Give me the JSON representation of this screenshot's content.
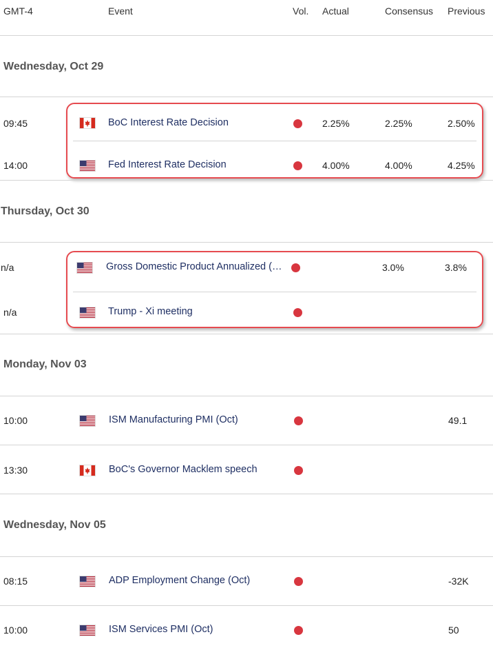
{
  "header": {
    "timezone": "GMT-4",
    "event": "Event",
    "vol": "Vol.",
    "actual": "Actual",
    "consensus": "Consensus",
    "previous": "Previous"
  },
  "colors": {
    "accent": "#e64a4f",
    "volume_dot": "#d8363f",
    "event_text": "#1f2f63"
  },
  "days": [
    {
      "label": "Wednesday, Oct 29",
      "events": [
        {
          "time": "09:45",
          "flag": "canada-flag-icon",
          "name": "BoC Interest Rate Decision",
          "volume": "high",
          "actual": "2.25%",
          "consensus": "2.25%",
          "previous": "2.50%"
        },
        {
          "time": "14:00",
          "flag": "usa-flag-icon",
          "name": "Fed Interest Rate Decision",
          "volume": "high",
          "actual": "4.00%",
          "consensus": "4.00%",
          "previous": "4.25%"
        }
      ]
    },
    {
      "label": "Thursday, Oct 30",
      "events": [
        {
          "time": "n/a",
          "flag": "usa-flag-icon",
          "name": "Gross Domestic Product Annualized (…",
          "volume": "high",
          "actual": "",
          "consensus": "3.0%",
          "previous": "3.8%"
        },
        {
          "time": "n/a",
          "flag": "usa-flag-icon",
          "name": "Trump - Xi meeting",
          "volume": "high",
          "actual": "",
          "consensus": "",
          "previous": ""
        }
      ]
    },
    {
      "label": "Monday, Nov 03",
      "events": [
        {
          "time": "10:00",
          "flag": "usa-flag-icon",
          "name": "ISM Manufacturing PMI (Oct)",
          "volume": "high",
          "actual": "",
          "consensus": "",
          "previous": "49.1"
        },
        {
          "time": "13:30",
          "flag": "canada-flag-icon",
          "name": "BoC's Governor Macklem speech",
          "volume": "high",
          "actual": "",
          "consensus": "",
          "previous": ""
        }
      ]
    },
    {
      "label": "Wednesday, Nov 05",
      "events": [
        {
          "time": "08:15",
          "flag": "usa-flag-icon",
          "name": "ADP Employment Change (Oct)",
          "volume": "high",
          "actual": "",
          "consensus": "",
          "previous": "-32K"
        },
        {
          "time": "10:00",
          "flag": "usa-flag-icon",
          "name": "ISM Services PMI (Oct)",
          "volume": "high",
          "actual": "",
          "consensus": "",
          "previous": "50"
        }
      ]
    }
  ]
}
